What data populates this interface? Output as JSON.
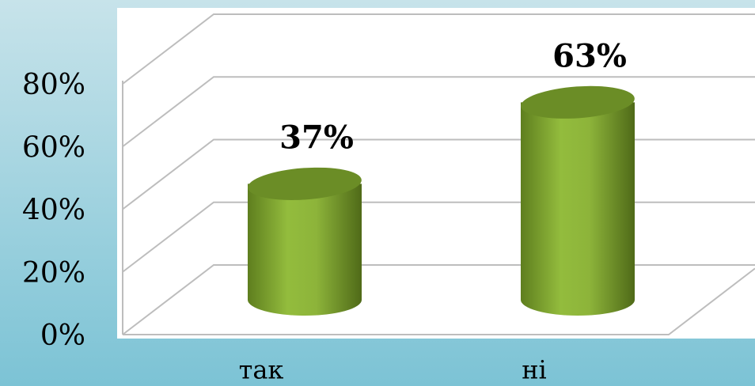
{
  "chart_data": {
    "type": "bar",
    "categories": [
      "так",
      "ні"
    ],
    "values": [
      37,
      63
    ],
    "value_labels": [
      "37%",
      "63%"
    ],
    "color": "#8db43a",
    "ylim": [
      0,
      80
    ],
    "yticks": [
      {
        "value": 0,
        "label": "0%"
      },
      {
        "value": 20,
        "label": "20%"
      },
      {
        "value": 40,
        "label": "40%"
      },
      {
        "value": 60,
        "label": "60%"
      },
      {
        "value": 80,
        "label": "80%"
      }
    ],
    "grid": true
  }
}
